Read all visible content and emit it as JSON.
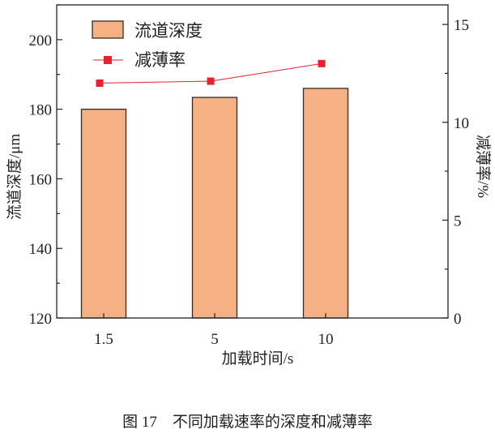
{
  "chart_data": {
    "type": "bar",
    "categories": [
      "1.5",
      "5",
      "10"
    ],
    "xlabel": "加载时间/s",
    "ylabel": "流道深度/μm",
    "y2label": "减薄率/%",
    "ylim": [
      120,
      210
    ],
    "y2lim": [
      0,
      16
    ],
    "yticks": [
      120,
      140,
      160,
      180,
      200
    ],
    "y2ticks": [
      0,
      5,
      10,
      15
    ],
    "series": [
      {
        "name": "流道深度",
        "type": "bar",
        "axis": "left",
        "values": [
          180,
          183.4,
          186
        ],
        "color": "#f5b183"
      },
      {
        "name": "减薄率",
        "type": "line",
        "axis": "right",
        "values": [
          12.0,
          12.1,
          13.0
        ],
        "color": "#e8212e"
      }
    ],
    "legend": "top-left",
    "grid": false
  },
  "caption": "图 17　不同加载速率的深度和减薄率"
}
